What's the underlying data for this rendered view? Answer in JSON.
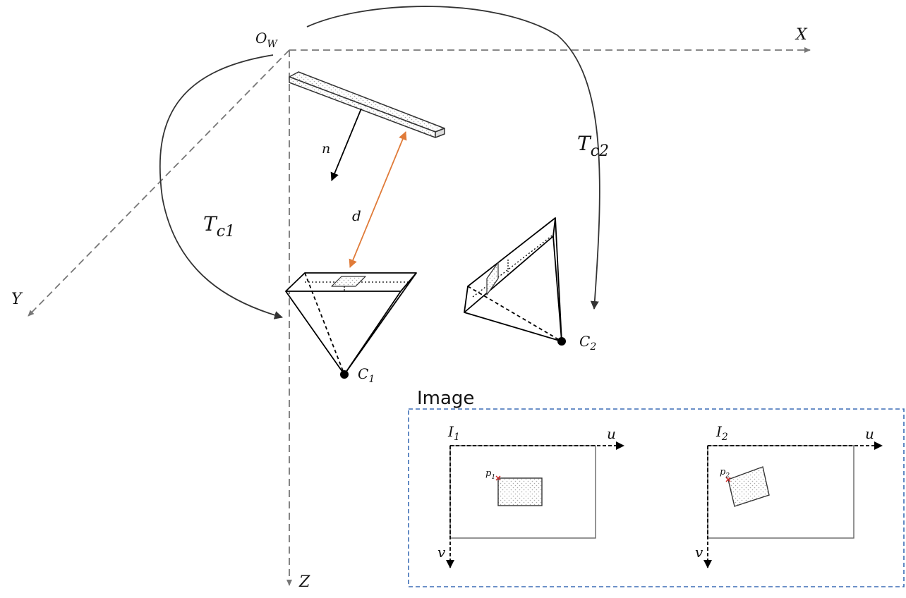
{
  "world_frame": {
    "origin_main": "O",
    "origin_sub": "W",
    "x_label": "X",
    "y_label": "Y",
    "z_label": "Z"
  },
  "plane": {
    "normal_label": "n",
    "distance_label": "d"
  },
  "transforms": [
    {
      "main": "T",
      "sub": "c1"
    },
    {
      "main": "T",
      "sub": "c2"
    }
  ],
  "cameras": [
    {
      "main": "C",
      "sub": "1"
    },
    {
      "main": "C",
      "sub": "2"
    }
  ],
  "image_panel": {
    "title": "Image",
    "images": [
      {
        "main": "I",
        "sub": "1",
        "u_label": "u",
        "v_label": "v",
        "point_main": "p",
        "point_sub": "1"
      },
      {
        "main": "I",
        "sub": "2",
        "u_label": "u",
        "v_label": "v",
        "point_main": "p",
        "point_sub": "2"
      }
    ]
  },
  "colors": {
    "axis_gray": "#777777",
    "line_dark": "#333333",
    "distance_orange": "#e07b39",
    "panel_blue": "#3b6db5",
    "point_red": "#cc2222",
    "dot_fill": "#bbbbbb"
  }
}
